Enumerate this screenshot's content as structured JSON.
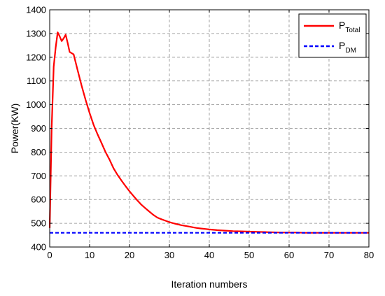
{
  "chart_data": {
    "type": "line",
    "xlabel": "Iteration numbers",
    "ylabel": "Power(KW)",
    "xlim": [
      0,
      80
    ],
    "ylim": [
      400,
      1400
    ],
    "xticks": [
      0,
      10,
      20,
      30,
      40,
      50,
      60,
      70,
      80
    ],
    "yticks": [
      400,
      500,
      600,
      700,
      800,
      900,
      1000,
      1100,
      1200,
      1300,
      1400
    ],
    "grid": true,
    "legend_position": "top-right",
    "series": [
      {
        "name": "P",
        "name_sub": "Total",
        "color": "#ff0000",
        "style": "solid",
        "x": [
          0,
          0.5,
          1,
          1.5,
          2,
          2.5,
          3,
          3.5,
          4,
          4.5,
          5,
          6,
          7,
          8,
          9,
          10,
          11,
          12,
          13,
          14,
          15,
          16,
          17,
          18,
          19,
          20,
          21,
          22,
          23,
          24,
          25,
          26,
          27,
          28,
          29,
          30,
          31,
          32,
          33,
          34,
          35,
          36,
          37,
          38,
          39,
          40,
          42,
          44,
          46,
          48,
          50,
          52,
          54,
          56,
          58,
          60,
          62,
          64,
          66,
          68,
          70,
          72,
          74,
          76,
          78,
          80
        ],
        "y": [
          480,
          900,
          1160,
          1240,
          1305,
          1288,
          1268,
          1280,
          1295,
          1260,
          1222,
          1212,
          1145,
          1080,
          1020,
          965,
          915,
          875,
          838,
          800,
          768,
          732,
          704,
          680,
          657,
          635,
          615,
          596,
          578,
          563,
          549,
          535,
          524,
          517,
          511,
          505,
          500,
          496,
          492,
          489,
          486,
          483,
          480,
          478,
          476,
          474,
          471,
          469,
          467,
          466,
          465,
          464,
          463,
          462,
          461,
          461,
          461,
          460,
          460,
          460,
          460,
          460,
          460,
          460,
          460,
          460
        ]
      },
      {
        "name": "P",
        "name_sub": "DM",
        "color": "#0000ff",
        "style": "dashed",
        "x": [
          0,
          80
        ],
        "y": [
          460,
          460
        ]
      }
    ]
  }
}
